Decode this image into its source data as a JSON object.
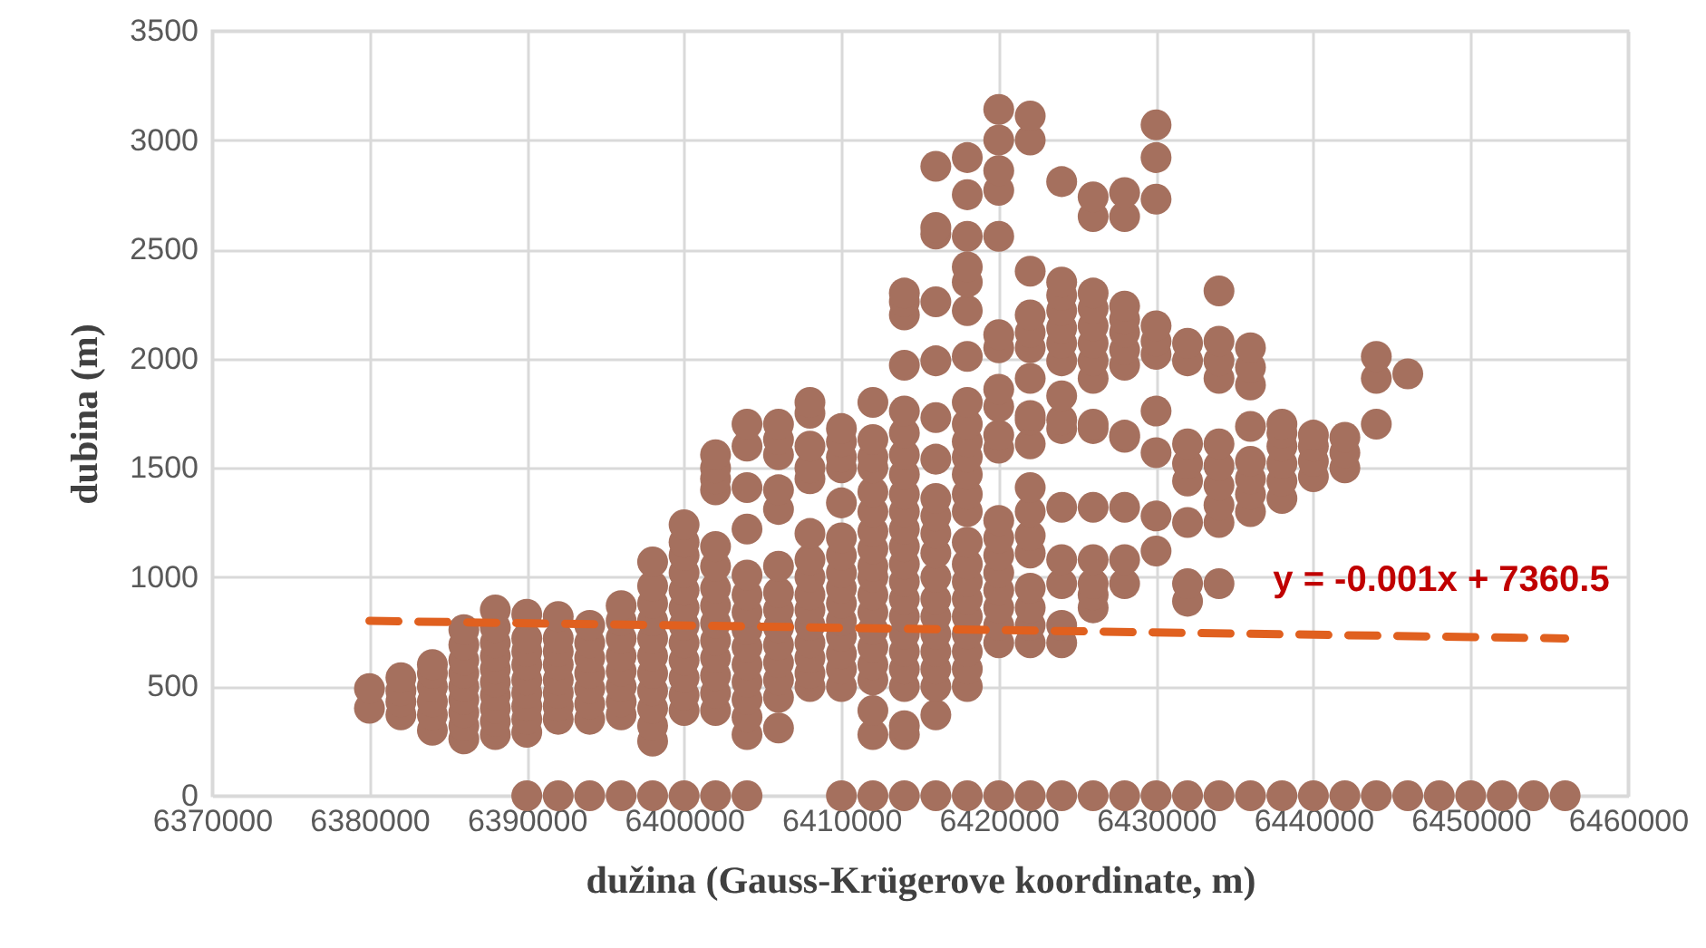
{
  "chart_data": {
    "type": "scatter",
    "xlabel": "dužina (Gauss-Krügerove koordinate, m)",
    "ylabel": "dubina (m)",
    "xlim": [
      6370000,
      6460000
    ],
    "xticks": [
      6370000,
      6380000,
      6390000,
      6400000,
      6410000,
      6420000,
      6430000,
      6440000,
      6450000,
      6460000
    ],
    "ylim": [
      0,
      3500
    ],
    "yticks": [
      0,
      500,
      1000,
      1500,
      2000,
      2500,
      3000,
      3500
    ],
    "grid": true,
    "marker": "circle",
    "series": [
      {
        "color": "#a5705e",
        "x": [
          6380000,
          6380000,
          6382000,
          6382000,
          6382000,
          6382000,
          6384000,
          6384000,
          6384000,
          6384000,
          6384000,
          6384000,
          6386000,
          6386000,
          6386000,
          6386000,
          6386000,
          6386000,
          6386000,
          6386000,
          6386000,
          6388000,
          6388000,
          6388000,
          6388000,
          6388000,
          6388000,
          6388000,
          6388000,
          6388000,
          6388000,
          6390000,
          6390000,
          6390000,
          6390000,
          6390000,
          6390000,
          6390000,
          6390000,
          6390000,
          6390000,
          6392000,
          6392000,
          6392000,
          6392000,
          6392000,
          6392000,
          6392000,
          6392000,
          6392000,
          6394000,
          6394000,
          6394000,
          6394000,
          6394000,
          6394000,
          6394000,
          6394000,
          6396000,
          6396000,
          6396000,
          6396000,
          6396000,
          6396000,
          6396000,
          6396000,
          6396000,
          6398000,
          6398000,
          6398000,
          6398000,
          6398000,
          6398000,
          6398000,
          6398000,
          6398000,
          6398000,
          6398000,
          6398000,
          6400000,
          6400000,
          6400000,
          6400000,
          6400000,
          6400000,
          6400000,
          6400000,
          6400000,
          6400000,
          6400000,
          6400000,
          6400000,
          6402000,
          6402000,
          6402000,
          6402000,
          6402000,
          6402000,
          6402000,
          6402000,
          6402000,
          6402000,
          6402000,
          6402000,
          6402000,
          6402000,
          6402000,
          6404000,
          6404000,
          6404000,
          6404000,
          6404000,
          6404000,
          6404000,
          6404000,
          6404000,
          6404000,
          6404000,
          6404000,
          6404000,
          6404000,
          6404000,
          6406000,
          6406000,
          6406000,
          6406000,
          6406000,
          6406000,
          6406000,
          6406000,
          6406000,
          6406000,
          6406000,
          6406000,
          6406000,
          6406000,
          6408000,
          6408000,
          6408000,
          6408000,
          6408000,
          6408000,
          6408000,
          6408000,
          6408000,
          6408000,
          6408000,
          6408000,
          6408000,
          6408000,
          6408000,
          6410000,
          6410000,
          6410000,
          6410000,
          6410000,
          6410000,
          6410000,
          6410000,
          6410000,
          6410000,
          6410000,
          6410000,
          6410000,
          6410000,
          6410000,
          6410000,
          6412000,
          6412000,
          6412000,
          6412000,
          6412000,
          6412000,
          6412000,
          6412000,
          6412000,
          6412000,
          6412000,
          6412000,
          6412000,
          6412000,
          6412000,
          6412000,
          6412000,
          6412000,
          6412000,
          6414000,
          6414000,
          6414000,
          6414000,
          6414000,
          6414000,
          6414000,
          6414000,
          6414000,
          6414000,
          6414000,
          6414000,
          6414000,
          6414000,
          6414000,
          6414000,
          6414000,
          6414000,
          6414000,
          6414000,
          6414000,
          6414000,
          6414000,
          6416000,
          6416000,
          6416000,
          6416000,
          6416000,
          6416000,
          6416000,
          6416000,
          6416000,
          6416000,
          6416000,
          6416000,
          6416000,
          6416000,
          6416000,
          6416000,
          6416000,
          6416000,
          6416000,
          6416000,
          6418000,
          6418000,
          6418000,
          6418000,
          6418000,
          6418000,
          6418000,
          6418000,
          6418000,
          6418000,
          6418000,
          6418000,
          6418000,
          6418000,
          6418000,
          6418000,
          6418000,
          6418000,
          6418000,
          6418000,
          6418000,
          6418000,
          6418000,
          6418000,
          6420000,
          6420000,
          6420000,
          6420000,
          6420000,
          6420000,
          6420000,
          6420000,
          6420000,
          6420000,
          6420000,
          6420000,
          6420000,
          6420000,
          6420000,
          6420000,
          6420000,
          6420000,
          6420000,
          6420000,
          6422000,
          6422000,
          6422000,
          6422000,
          6422000,
          6422000,
          6422000,
          6422000,
          6422000,
          6422000,
          6422000,
          6422000,
          6422000,
          6422000,
          6422000,
          6422000,
          6422000,
          6422000,
          6422000,
          6424000,
          6424000,
          6424000,
          6424000,
          6424000,
          6424000,
          6424000,
          6424000,
          6424000,
          6424000,
          6424000,
          6424000,
          6424000,
          6424000,
          6424000,
          6424000,
          6426000,
          6426000,
          6426000,
          6426000,
          6426000,
          6426000,
          6426000,
          6426000,
          6426000,
          6426000,
          6426000,
          6426000,
          6426000,
          6426000,
          6426000,
          6426000,
          6428000,
          6428000,
          6428000,
          6428000,
          6428000,
          6428000,
          6428000,
          6428000,
          6428000,
          6428000,
          6428000,
          6428000,
          6428000,
          6430000,
          6430000,
          6430000,
          6430000,
          6430000,
          6430000,
          6430000,
          6430000,
          6430000,
          6430000,
          6430000,
          6432000,
          6432000,
          6432000,
          6432000,
          6432000,
          6432000,
          6432000,
          6432000,
          6432000,
          6434000,
          6434000,
          6434000,
          6434000,
          6434000,
          6434000,
          6434000,
          6434000,
          6434000,
          6434000,
          6434000,
          6436000,
          6436000,
          6436000,
          6436000,
          6436000,
          6436000,
          6436000,
          6436000,
          6436000,
          6438000,
          6438000,
          6438000,
          6438000,
          6438000,
          6438000,
          6438000,
          6440000,
          6440000,
          6440000,
          6440000,
          6440000,
          6442000,
          6442000,
          6442000,
          6442000,
          6444000,
          6444000,
          6444000,
          6444000,
          6446000,
          6446000,
          6448000,
          6450000,
          6452000,
          6454000,
          6456000
        ],
        "values": [
          400,
          490,
          370,
          430,
          480,
          540,
          300,
          370,
          430,
          500,
          560,
          600,
          260,
          320,
          380,
          440,
          500,
          560,
          620,
          690,
          760,
          280,
          340,
          400,
          460,
          520,
          580,
          640,
          700,
          770,
          850,
          0,
          290,
          350,
          410,
          470,
          530,
          600,
          660,
          720,
          830,
          0,
          350,
          410,
          470,
          530,
          600,
          660,
          720,
          820,
          0,
          350,
          420,
          490,
          560,
          630,
          700,
          780,
          0,
          370,
          430,
          500,
          570,
          640,
          720,
          800,
          870,
          0,
          250,
          320,
          400,
          480,
          560,
          640,
          720,
          800,
          880,
          960,
          1070,
          0,
          390,
          460,
          540,
          620,
          700,
          780,
          860,
          940,
          1020,
          1100,
          1160,
          1240,
          0,
          390,
          470,
          550,
          630,
          710,
          790,
          870,
          950,
          1050,
          1140,
          1400,
          1450,
          1500,
          1560,
          0,
          280,
          360,
          440,
          520,
          600,
          680,
          760,
          840,
          920,
          1010,
          1220,
          1410,
          1600,
          1700,
          310,
          450,
          530,
          610,
          690,
          770,
          850,
          930,
          1050,
          1310,
          1400,
          1560,
          1630,
          1700,
          500,
          560,
          630,
          700,
          780,
          850,
          920,
          1000,
          1080,
          1200,
          1450,
          1500,
          1600,
          1750,
          1800,
          0,
          500,
          580,
          650,
          730,
          800,
          880,
          950,
          1020,
          1100,
          1180,
          1340,
          1500,
          1550,
          1620,
          1680,
          0,
          280,
          390,
          530,
          600,
          680,
          760,
          840,
          920,
          1000,
          1050,
          1130,
          1210,
          1300,
          1390,
          1500,
          1550,
          1630,
          1800,
          0,
          280,
          320,
          500,
          580,
          660,
          740,
          820,
          900,
          980,
          1060,
          1140,
          1220,
          1300,
          1380,
          1470,
          1560,
          1660,
          1760,
          1970,
          2200,
          2260,
          2300,
          0,
          370,
          500,
          580,
          660,
          740,
          820,
          900,
          1000,
          1110,
          1200,
          1280,
          1360,
          1540,
          1730,
          1990,
          2260,
          2570,
          2600,
          2880,
          0,
          500,
          580,
          660,
          740,
          820,
          900,
          980,
          1060,
          1160,
          1300,
          1380,
          1470,
          1550,
          1620,
          1700,
          1800,
          2010,
          2220,
          2350,
          2420,
          2560,
          2750,
          2920,
          0,
          700,
          780,
          860,
          940,
          1020,
          1100,
          1180,
          1260,
          1590,
          1650,
          1780,
          1860,
          2050,
          2110,
          2560,
          2770,
          2860,
          3000,
          3140,
          0,
          700,
          780,
          860,
          950,
          1110,
          1190,
          1300,
          1410,
          1610,
          1720,
          1740,
          1910,
          2050,
          2120,
          2200,
          2400,
          3000,
          3110,
          0,
          700,
          780,
          970,
          1080,
          1320,
          1680,
          1720,
          1830,
          1990,
          2070,
          2140,
          2220,
          2290,
          2350,
          2810,
          0,
          860,
          920,
          970,
          1080,
          1320,
          1680,
          1700,
          1910,
          1990,
          2070,
          2150,
          2230,
          2300,
          2650,
          2740,
          0,
          970,
          1080,
          1320,
          1640,
          1650,
          1970,
          2040,
          2120,
          2180,
          2240,
          2650,
          2760,
          0,
          1120,
          1280,
          1570,
          1760,
          2020,
          2080,
          2150,
          2730,
          2920,
          3070,
          0,
          890,
          970,
          1250,
          1440,
          1520,
          1610,
          1990,
          2070,
          0,
          970,
          1250,
          1330,
          1420,
          1510,
          1610,
          1910,
          1990,
          2080,
          2310,
          0,
          1300,
          1380,
          1450,
          1530,
          1690,
          1880,
          1960,
          2050,
          0,
          1360,
          1440,
          1520,
          1600,
          1660,
          1700,
          0,
          1460,
          1530,
          1600,
          1650,
          0,
          1500,
          1570,
          1640,
          0,
          1700,
          1910,
          2010,
          0,
          1930,
          0,
          0,
          0,
          0,
          0
        ]
      },
      {
        "type": "line",
        "color": "#e0601f",
        "line_style": "dashed",
        "marker": "none",
        "x": [
          6380000,
          6456000
        ],
        "values": [
          800,
          720
        ]
      }
    ],
    "annotations": [
      "y = -0.001x + 7360.5"
    ]
  }
}
